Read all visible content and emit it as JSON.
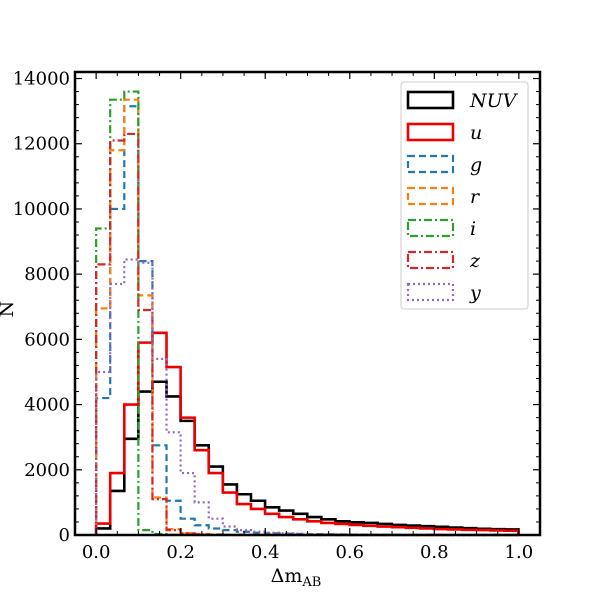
{
  "chart_data": {
    "type": "histogram",
    "title": "",
    "xlabel": "Δm",
    "xlabel_sub": "AB",
    "ylabel": "N",
    "xlim": [
      -0.05,
      1.05
    ],
    "ylim": [
      0,
      14200
    ],
    "xticks": [
      0.0,
      0.2,
      0.4,
      0.6,
      0.8,
      1.0
    ],
    "xtick_labels": [
      "0.0",
      "0.2",
      "0.4",
      "0.6",
      "0.8",
      "1.0"
    ],
    "yticks": [
      0,
      2000,
      4000,
      6000,
      8000,
      10000,
      12000,
      14000
    ],
    "ytick_labels": [
      "0",
      "2000",
      "4000",
      "6000",
      "8000",
      "10000",
      "12000",
      "14000"
    ],
    "bin_width": 0.0333,
    "bin_start": 0.0,
    "legend_position": "top-right",
    "series": [
      {
        "name": "NUV",
        "color": "#000000",
        "dash": "solid",
        "values": [
          200,
          1350,
          2950,
          4400,
          4700,
          4250,
          3500,
          2750,
          2100,
          1550,
          1250,
          1050,
          850,
          750,
          650,
          550,
          480,
          420,
          390,
          370,
          340,
          310,
          290,
          270,
          250,
          230,
          210,
          190,
          180,
          170
        ]
      },
      {
        "name": "u",
        "color": "#ee0000",
        "dash": "solid",
        "values": [
          350,
          1900,
          4000,
          5900,
          6200,
          5150,
          3600,
          2600,
          1900,
          1300,
          950,
          800,
          650,
          550,
          480,
          420,
          370,
          340,
          310,
          280,
          260,
          240,
          220,
          200,
          180,
          170,
          160,
          150,
          140,
          130
        ]
      },
      {
        "name": "g",
        "color": "#1f77b4",
        "dash": "dashed",
        "values": [
          4200,
          10000,
          13150,
          8400,
          2750,
          1050,
          500,
          300,
          200,
          150,
          100,
          70,
          50,
          40,
          30,
          25,
          20,
          15,
          12,
          10,
          8,
          6,
          5,
          4,
          3,
          2,
          2,
          1,
          1,
          1
        ]
      },
      {
        "name": "r",
        "color": "#ff7f0e",
        "dash": "dashed",
        "values": [
          6950,
          11800,
          13350,
          7350,
          1150,
          180,
          60,
          30,
          20,
          10,
          8,
          6,
          5,
          4,
          3,
          2,
          2,
          1,
          1,
          1,
          0,
          0,
          0,
          0,
          0,
          0,
          0,
          0,
          0,
          0
        ]
      },
      {
        "name": "i",
        "color": "#2ca02c",
        "dash": "dashdot",
        "values": [
          9400,
          13350,
          13600,
          150,
          30,
          10,
          5,
          3,
          2,
          1,
          1,
          0,
          0,
          0,
          0,
          0,
          0,
          0,
          0,
          0,
          0,
          0,
          0,
          0,
          0,
          0,
          0,
          0,
          0,
          0
        ]
      },
      {
        "name": "z",
        "color": "#d62728",
        "dash": "dashdot",
        "values": [
          8300,
          12100,
          12300,
          6900,
          1100,
          150,
          50,
          20,
          10,
          5,
          3,
          2,
          1,
          1,
          0,
          0,
          0,
          0,
          0,
          0,
          0,
          0,
          0,
          0,
          0,
          0,
          0,
          0,
          0,
          0
        ]
      },
      {
        "name": "y",
        "color": "#9467bd",
        "dash": "dotted",
        "values": [
          5000,
          7700,
          8450,
          8350,
          5400,
          3150,
          1900,
          1000,
          500,
          260,
          150,
          100,
          70,
          50,
          40,
          30,
          25,
          20,
          15,
          12,
          10,
          8,
          6,
          5,
          4,
          3,
          2,
          2,
          1,
          1
        ]
      }
    ]
  }
}
